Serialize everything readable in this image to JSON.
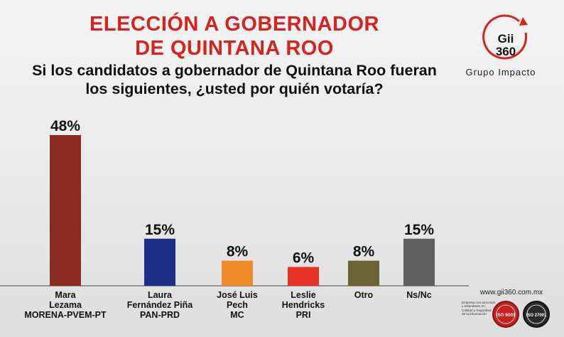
{
  "header": {
    "title_line1": "ELECCIÓN A GOBERNADOR",
    "title_line2": "DE QUINTANA ROO",
    "question": "Si los candidatos a gobernador de Quintana Roo fueran los siguientes, ¿usted por quién votaría?"
  },
  "brand": {
    "logo_line1": "Gii",
    "logo_line2": "360",
    "name": "Grupo Impacto",
    "accent_color": "#d6231f",
    "website": "www.gii360.com.mx"
  },
  "certifications": {
    "text_lines": [
      "Empresa con procesos",
      "y estándares en:",
      "Calidad y Seguridad",
      "de la información"
    ],
    "badge1": "ISO 9001",
    "badge2": "ISO 27001"
  },
  "chart_data": {
    "type": "bar",
    "categories": [
      [
        "Mara",
        "Lezama",
        "MORENA-PVEM-PT"
      ],
      [
        "Laura",
        "Fernández Piña",
        "PAN-PRD"
      ],
      [
        "José Luis",
        "Pech",
        "MC"
      ],
      [
        "Leslie",
        "Hendricks",
        "PRI"
      ],
      [
        "Otro"
      ],
      [
        "Ns/Nc"
      ]
    ],
    "values": [
      48,
      15,
      8,
      6,
      8,
      15
    ],
    "data_labels": [
      "48%",
      "15%",
      "8%",
      "6%",
      "8%",
      "15%"
    ],
    "colors": [
      "#8b2a1e",
      "#1c2f86",
      "#ef8a2a",
      "#e53224",
      "#6b6236",
      "#5f5f5f"
    ],
    "title": "",
    "xlabel": "",
    "ylabel": "",
    "ylim": [
      0,
      48
    ],
    "grid": false,
    "legend": "none"
  }
}
